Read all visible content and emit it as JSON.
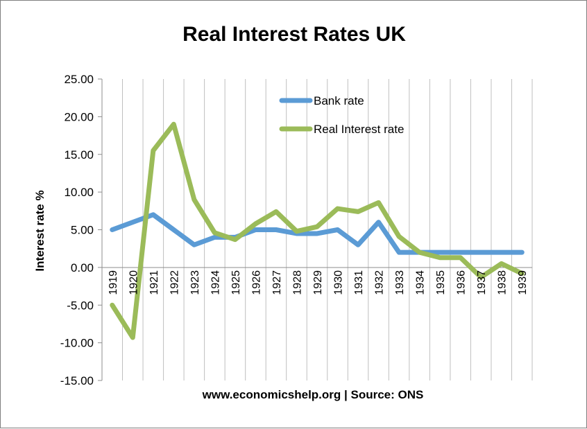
{
  "chart_data": {
    "type": "line",
    "title": "Real Interest Rates UK",
    "xlabel": "www.economicshelp.org | Source: ONS",
    "ylabel": "Interest rate %",
    "ylim": [
      -15,
      25
    ],
    "yticks": [
      "25.00",
      "20.00",
      "15.00",
      "10.00",
      "5.00",
      "0.00",
      "-5.00",
      "-10.00",
      "-15.00"
    ],
    "grid": "vertical",
    "legend_position": "top-center",
    "categories": [
      "1919",
      "1920",
      "1921",
      "1922",
      "1923",
      "1924",
      "1925",
      "1926",
      "1927",
      "1928",
      "1929",
      "1930",
      "1931",
      "1932",
      "1933",
      "1934",
      "1935",
      "1936",
      "1937",
      "1938",
      "1939"
    ],
    "series": [
      {
        "name": "Bank rate",
        "color": "#5b9bd5",
        "values": [
          5,
          6,
          7,
          5,
          3,
          4,
          4,
          5,
          5,
          4.5,
          4.5,
          5,
          3,
          6,
          2,
          2,
          2,
          2,
          2,
          2,
          2
        ]
      },
      {
        "name": "Real Interest rate",
        "color": "#9bbb59",
        "values": [
          -5,
          -9.3,
          15.5,
          19,
          9,
          4.6,
          3.7,
          5.8,
          7.4,
          4.8,
          5.4,
          7.8,
          7.4,
          8.6,
          4.1,
          2.0,
          1.3,
          1.3,
          -1.3,
          0.5,
          -0.8
        ]
      }
    ]
  }
}
